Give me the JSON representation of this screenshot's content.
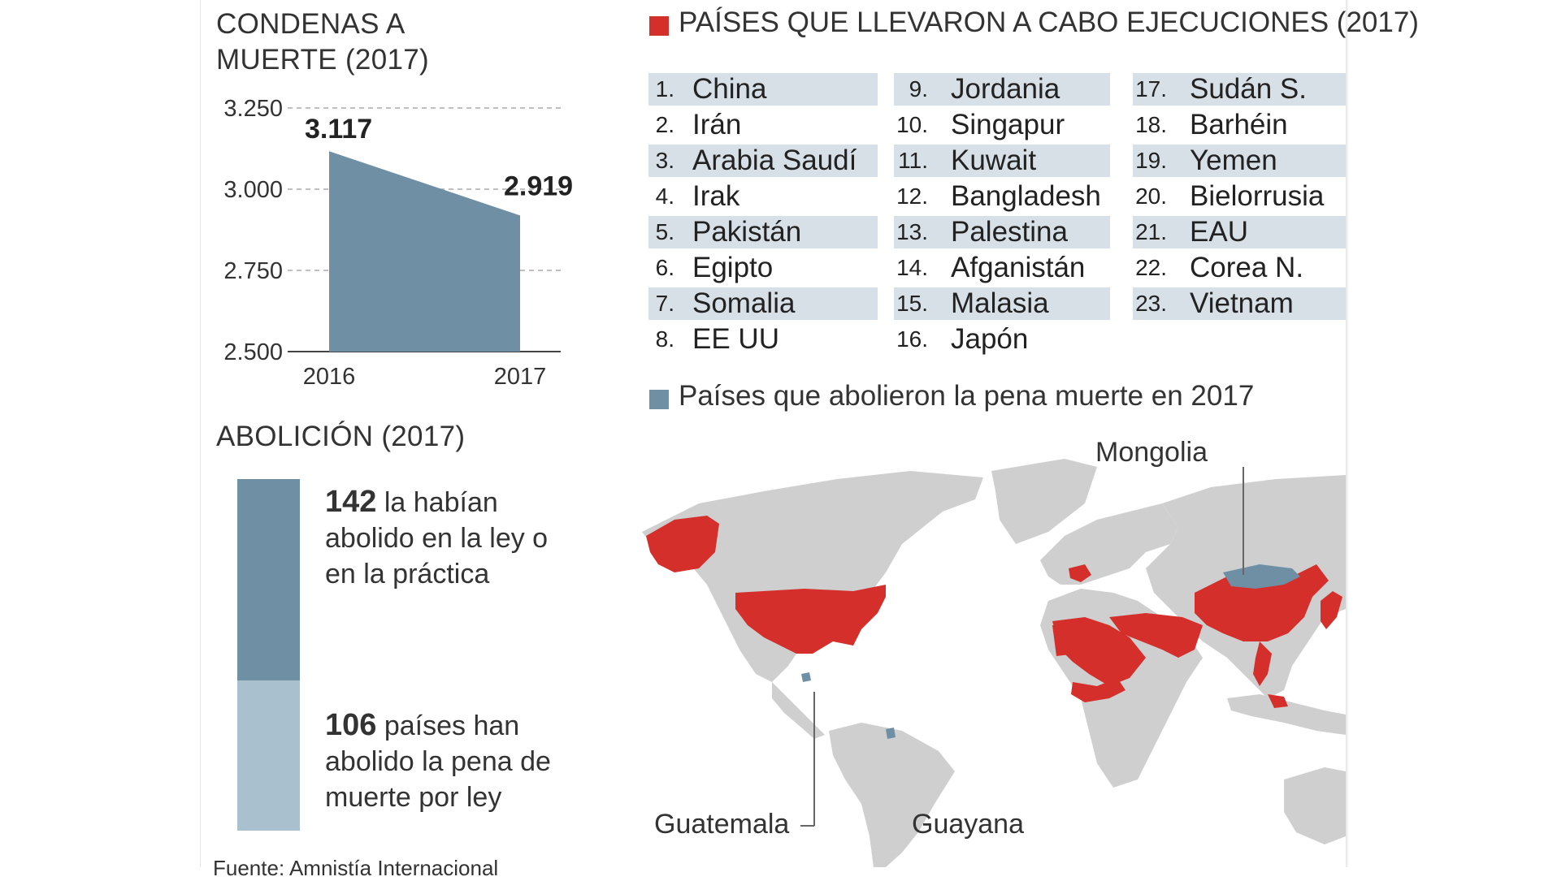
{
  "colors": {
    "series": "#6f8fa5",
    "light": "#a9c0cf",
    "executions": "#d42f2a",
    "abolished": "#6f8fa5",
    "land": "#cfcfcf",
    "highlight_row": "#d7e0e7"
  },
  "chart_data": {
    "type": "area",
    "title": "CONDENAS A MUERTE (2017)",
    "categories": [
      "2016",
      "2017"
    ],
    "values": [
      3117,
      2919
    ],
    "value_labels": [
      "3.117",
      "2.919"
    ],
    "yticks": [
      "3.250",
      "3.000",
      "2.750",
      "2.500"
    ],
    "ytick_values": [
      3250,
      3000,
      2750,
      2500
    ],
    "ylim": [
      2500,
      3250
    ],
    "grid": true
  },
  "abolition": {
    "title": "ABOLICIÓN (2017)",
    "total": 248,
    "segments": [
      {
        "num": "142",
        "text": "la habían abolido en la ley o en la práctica",
        "value": 142
      },
      {
        "num": "106",
        "text": "países han abolido la pena de muerte por ley",
        "value": 106
      }
    ]
  },
  "executions": {
    "title": "PAÍSES QUE LLEVARON A CABO EJECUCIONES (2017)",
    "countries": [
      {
        "n": "1.",
        "name": "China"
      },
      {
        "n": "2.",
        "name": "Irán"
      },
      {
        "n": "3.",
        "name": "Arabia Saudí"
      },
      {
        "n": "4.",
        "name": "Irak"
      },
      {
        "n": "5.",
        "name": "Pakistán"
      },
      {
        "n": "6.",
        "name": "Egipto"
      },
      {
        "n": "7.",
        "name": "Somalia"
      },
      {
        "n": "8.",
        "name": "EE UU"
      },
      {
        "n": "9.",
        "name": "Jordania"
      },
      {
        "n": "10.",
        "name": "Singapur"
      },
      {
        "n": "11.",
        "name": "Kuwait"
      },
      {
        "n": "12.",
        "name": "Bangladesh"
      },
      {
        "n": "13.",
        "name": "Palestina"
      },
      {
        "n": "14.",
        "name": "Afganistán"
      },
      {
        "n": "15.",
        "name": "Malasia"
      },
      {
        "n": "16.",
        "name": "Japón"
      },
      {
        "n": "17.",
        "name": "Sudán S."
      },
      {
        "n": "18.",
        "name": "Barhéin"
      },
      {
        "n": "19.",
        "name": "Yemen"
      },
      {
        "n": "20.",
        "name": "Bielorrusia"
      },
      {
        "n": "21.",
        "name": "EAU"
      },
      {
        "n": "22.",
        "name": "Corea N."
      },
      {
        "n": "23.",
        "name": "Vietnam"
      }
    ]
  },
  "abolished_legend": "Países que abolieron la pena muerte en 2017",
  "map_labels": {
    "mongolia": "Mongolia",
    "guatemala": "Guatemala",
    "guayana": "Guayana"
  },
  "source": "Fuente: Amnistía Internacional"
}
